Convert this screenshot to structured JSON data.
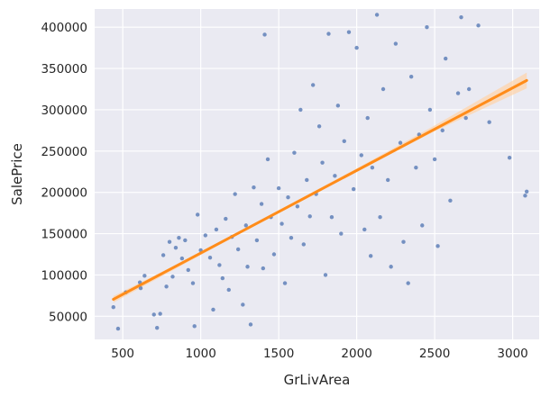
{
  "chart_data": {
    "type": "scatter",
    "title": "",
    "xlabel": "GrLivArea",
    "ylabel": "SalePrice",
    "xlim": [
      320,
      3170
    ],
    "ylim": [
      22000,
      422000
    ],
    "xticks": [
      500,
      1000,
      1500,
      2000,
      2500,
      3000
    ],
    "yticks": [
      50000,
      100000,
      150000,
      200000,
      250000,
      300000,
      350000,
      400000
    ],
    "grid": true,
    "legend": "none",
    "colors": {
      "background": "#eaeaf2",
      "grid": "#ffffff",
      "points": "#4c72b0",
      "regression_line": "#ff8c1a",
      "confidence_band": "#ffd3a8"
    },
    "regression_line": {
      "x": [
        440,
        3090
      ],
      "y": [
        70500,
        335500
      ]
    },
    "confidence_band": {
      "x": [
        440,
        1000,
        1500,
        2000,
        2500,
        3090
      ],
      "upper": [
        74500,
        127500,
        178500,
        229000,
        281000,
        345000
      ],
      "lower": [
        66500,
        124000,
        175500,
        225000,
        274000,
        326000
      ]
    },
    "series": [
      {
        "values": [
          [
            440,
            61000
          ],
          [
            470,
            35000
          ],
          [
            520,
            79000
          ],
          [
            610,
            91000
          ],
          [
            615,
            84000
          ],
          [
            640,
            99000
          ],
          [
            700,
            52000
          ],
          [
            720,
            36000
          ],
          [
            740,
            53000
          ],
          [
            760,
            124000
          ],
          [
            780,
            86000
          ],
          [
            800,
            140000
          ],
          [
            820,
            98000
          ],
          [
            840,
            133000
          ],
          [
            860,
            145000
          ],
          [
            880,
            120000
          ],
          [
            900,
            142000
          ],
          [
            920,
            106000
          ],
          [
            950,
            90000
          ],
          [
            960,
            38000
          ],
          [
            980,
            173000
          ],
          [
            1000,
            130000
          ],
          [
            1030,
            148000
          ],
          [
            1060,
            121000
          ],
          [
            1080,
            58000
          ],
          [
            1100,
            155000
          ],
          [
            1120,
            112000
          ],
          [
            1140,
            96000
          ],
          [
            1160,
            168000
          ],
          [
            1180,
            82000
          ],
          [
            1200,
            146000
          ],
          [
            1220,
            198000
          ],
          [
            1240,
            131000
          ],
          [
            1270,
            64000
          ],
          [
            1290,
            160000
          ],
          [
            1300,
            110000
          ],
          [
            1320,
            40000
          ],
          [
            1340,
            206000
          ],
          [
            1360,
            142000
          ],
          [
            1390,
            186000
          ],
          [
            1400,
            108000
          ],
          [
            1410,
            391000
          ],
          [
            1430,
            240000
          ],
          [
            1450,
            170000
          ],
          [
            1470,
            125000
          ],
          [
            1500,
            205000
          ],
          [
            1520,
            162000
          ],
          [
            1540,
            90000
          ],
          [
            1560,
            194000
          ],
          [
            1580,
            145000
          ],
          [
            1600,
            248000
          ],
          [
            1620,
            183000
          ],
          [
            1640,
            300000
          ],
          [
            1660,
            137000
          ],
          [
            1680,
            215000
          ],
          [
            1700,
            171000
          ],
          [
            1720,
            330000
          ],
          [
            1740,
            198000
          ],
          [
            1760,
            280000
          ],
          [
            1780,
            236000
          ],
          [
            1800,
            100000
          ],
          [
            1820,
            392000
          ],
          [
            1840,
            170000
          ],
          [
            1860,
            220000
          ],
          [
            1880,
            305000
          ],
          [
            1900,
            150000
          ],
          [
            1920,
            262000
          ],
          [
            1950,
            394000
          ],
          [
            1980,
            204000
          ],
          [
            2000,
            375000
          ],
          [
            2030,
            245000
          ],
          [
            2050,
            155000
          ],
          [
            2070,
            290000
          ],
          [
            2090,
            123000
          ],
          [
            2100,
            230000
          ],
          [
            2130,
            415000
          ],
          [
            2150,
            170000
          ],
          [
            2170,
            325000
          ],
          [
            2200,
            215000
          ],
          [
            2220,
            110000
          ],
          [
            2250,
            380000
          ],
          [
            2280,
            260000
          ],
          [
            2300,
            140000
          ],
          [
            2330,
            90000
          ],
          [
            2350,
            340000
          ],
          [
            2380,
            230000
          ],
          [
            2400,
            270000
          ],
          [
            2420,
            160000
          ],
          [
            2450,
            400000
          ],
          [
            2470,
            300000
          ],
          [
            2500,
            240000
          ],
          [
            2520,
            135000
          ],
          [
            2550,
            275000
          ],
          [
            2570,
            362000
          ],
          [
            2600,
            190000
          ],
          [
            2650,
            320000
          ],
          [
            2670,
            412000
          ],
          [
            2700,
            290000
          ],
          [
            2720,
            325000
          ],
          [
            2780,
            402000
          ],
          [
            2850,
            285000
          ],
          [
            2980,
            242000
          ],
          [
            3080,
            196000
          ],
          [
            3090,
            201000
          ]
        ]
      }
    ]
  }
}
